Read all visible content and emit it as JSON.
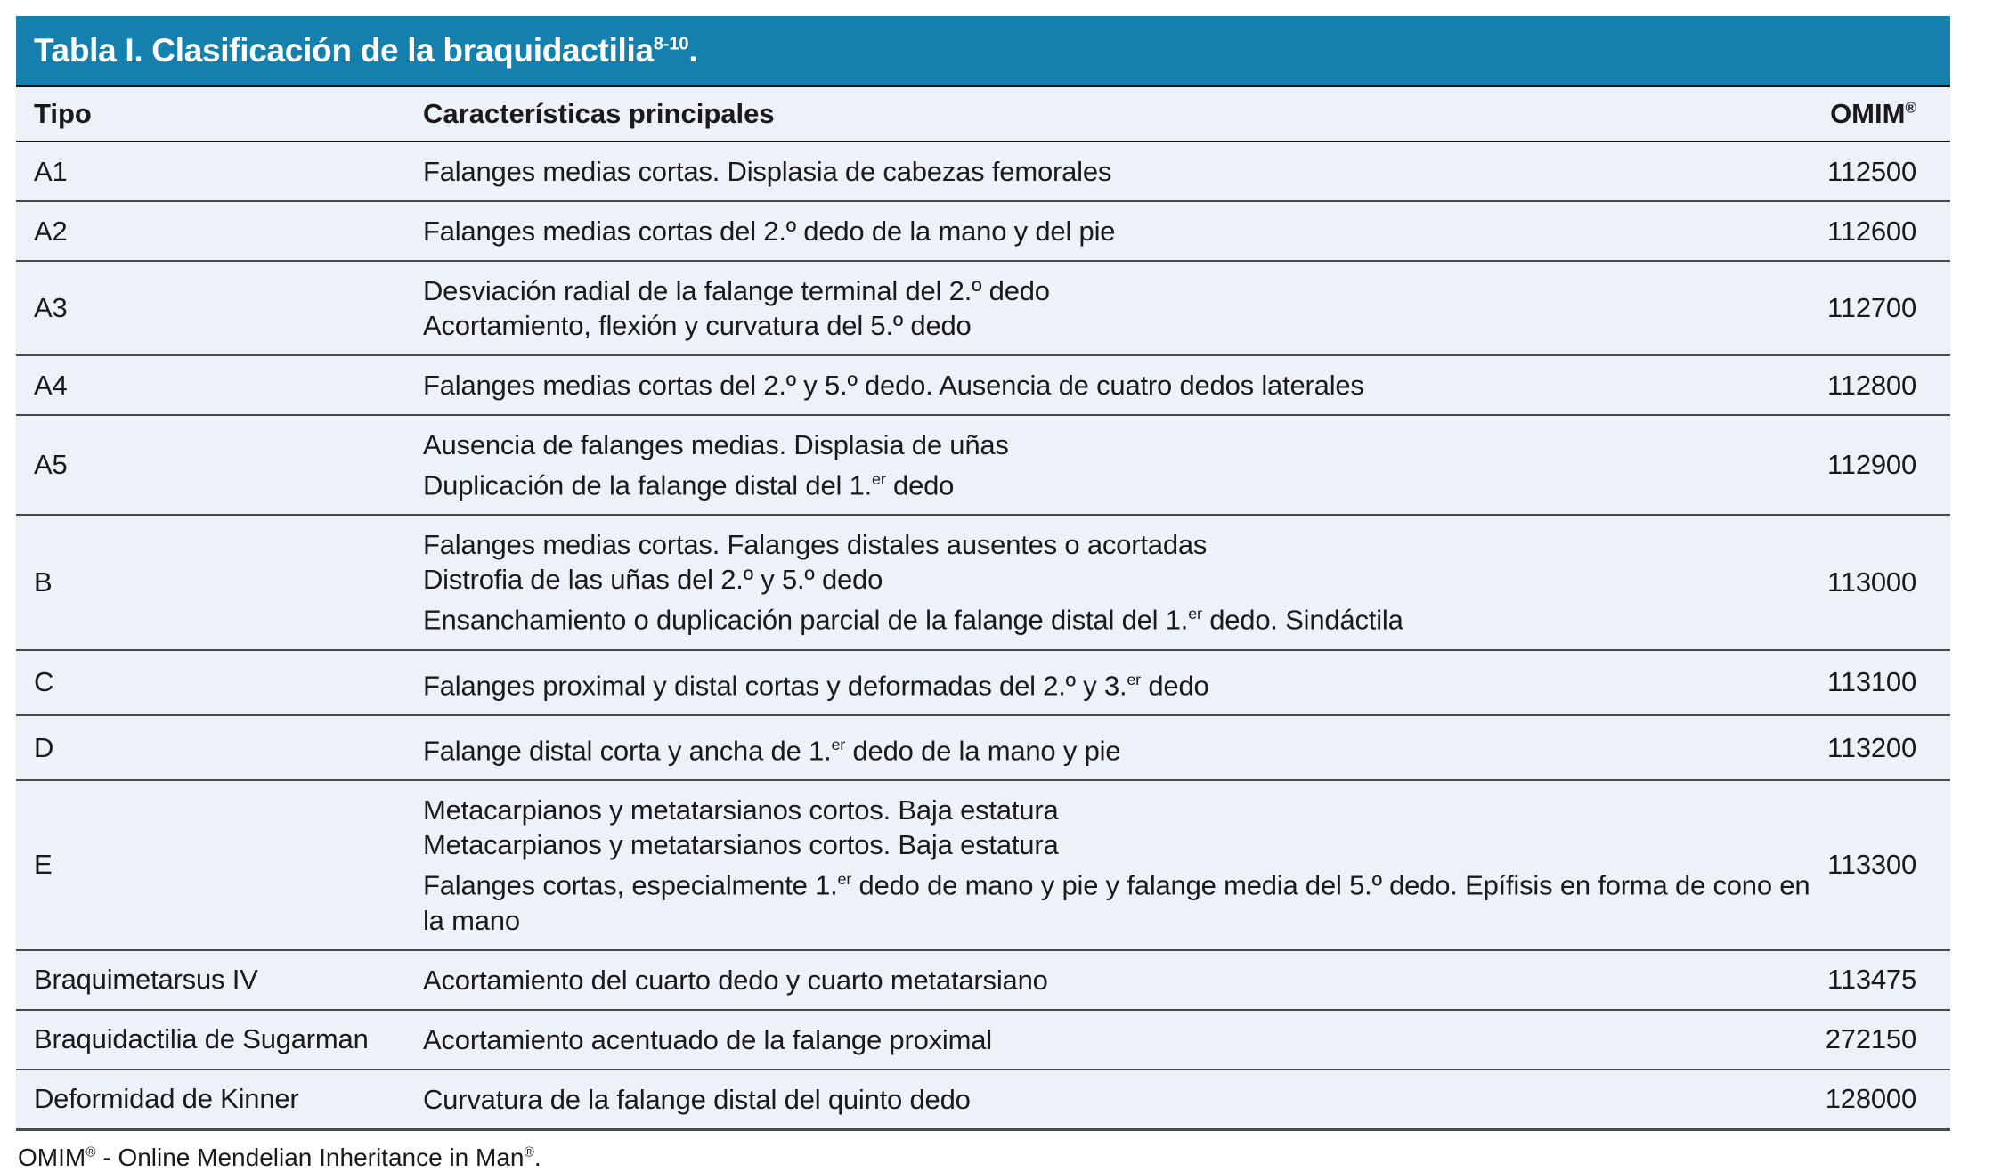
{
  "colors": {
    "title_bg": "#1580AD",
    "row_bg": "#EDF1F8",
    "text": "#1a1a1a",
    "divider": "#4a4a4a",
    "header_line": "#141414"
  },
  "title": {
    "main": "Tabla I. Clasificación de la braquidactilia",
    "sup": "8-10",
    "end": "."
  },
  "header": {
    "tipo": "Tipo",
    "caracteristicas": "Características principales",
    "omim": "OMIM",
    "omim_sup": "®"
  },
  "rows": [
    {
      "tipo": "A1",
      "lines": [
        "Falanges medias cortas. Displasia de cabezas femorales"
      ],
      "omim": "112500"
    },
    {
      "tipo": "A2",
      "lines": [
        "Falanges medias cortas del 2.º dedo de la mano y del pie"
      ],
      "omim": "112600"
    },
    {
      "tipo": "A3",
      "lines": [
        "Desviación radial de la falange terminal del 2.º dedo",
        "Acortamiento, flexión y curvatura del 5.º dedo"
      ],
      "omim": "112700"
    },
    {
      "tipo": "A4",
      "lines": [
        "Falanges medias cortas del 2.º y 5.º dedo. Ausencia de cuatro dedos laterales"
      ],
      "omim": "112800"
    },
    {
      "tipo": "A5",
      "lines": [
        "Ausencia de falanges medias. Displasia de uñas",
        "Duplicación de la falange distal del 1.^er^ dedo"
      ],
      "omim": "112900"
    },
    {
      "tipo": "B",
      "lines": [
        "Falanges medias cortas. Falanges distales ausentes o acortadas",
        "Distrofia de las uñas del 2.º y 5.º dedo",
        "Ensanchamiento o duplicación parcial de la falange distal del 1.^er^ dedo. Sindáctila"
      ],
      "omim": "113000"
    },
    {
      "tipo": "C",
      "lines": [
        "Falanges proximal y distal cortas y deformadas del 2.º y 3.^er^ dedo"
      ],
      "omim": "113100"
    },
    {
      "tipo": "D",
      "lines": [
        "Falange distal corta y ancha de 1.^er^ dedo de la mano y pie"
      ],
      "omim": "113200"
    },
    {
      "tipo": "E",
      "lines": [
        "Metacarpianos y metatarsianos cortos. Baja estatura",
        "Metacarpianos y metatarsianos cortos. Baja estatura",
        "Falanges cortas, especialmente 1.^er^ dedo de mano y pie y falange media del 5.º dedo. Epífisis en forma de cono en la mano"
      ],
      "omim": "113300"
    },
    {
      "tipo": "Braquimetarsus IV",
      "lines": [
        "Acortamiento del cuarto dedo y cuarto metatarsiano"
      ],
      "omim": "113475"
    },
    {
      "tipo": "Braquidactilia de Sugarman",
      "lines": [
        "Acortamiento acentuado de la falange proximal"
      ],
      "omim": "272150"
    },
    {
      "tipo": "Deformidad de Kinner",
      "lines": [
        "Curvatura de la falange distal del quinto dedo"
      ],
      "omim": "128000"
    }
  ],
  "footer": {
    "parts": [
      "OMIM",
      "®",
      " - Online Mendelian Inheritance in Man",
      "®",
      "."
    ]
  }
}
